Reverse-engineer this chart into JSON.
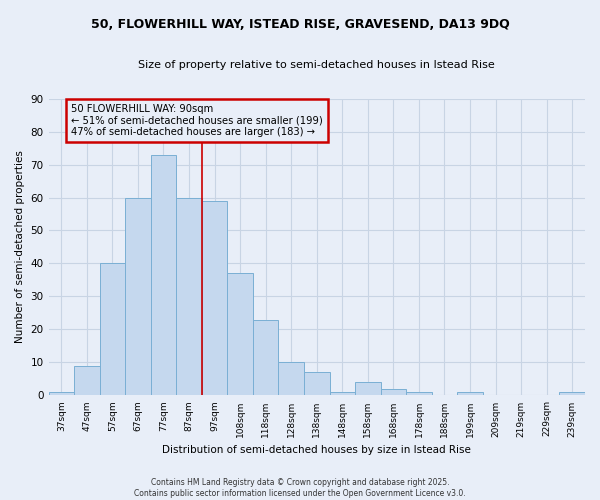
{
  "title1": "50, FLOWERHILL WAY, ISTEAD RISE, GRAVESEND, DA13 9DQ",
  "title2": "Size of property relative to semi-detached houses in Istead Rise",
  "xlabel": "Distribution of semi-detached houses by size in Istead Rise",
  "ylabel": "Number of semi-detached properties",
  "categories": [
    "37sqm",
    "47sqm",
    "57sqm",
    "67sqm",
    "77sqm",
    "87sqm",
    "97sqm",
    "108sqm",
    "118sqm",
    "128sqm",
    "138sqm",
    "148sqm",
    "158sqm",
    "168sqm",
    "178sqm",
    "188sqm",
    "199sqm",
    "209sqm",
    "219sqm",
    "229sqm",
    "239sqm"
  ],
  "values": [
    1,
    9,
    40,
    60,
    73,
    60,
    59,
    37,
    23,
    10,
    7,
    1,
    4,
    2,
    1,
    0,
    1,
    0,
    0,
    0,
    1
  ],
  "bar_color": "#c5d8ee",
  "bar_edge_color": "#7aafd4",
  "grid_color": "#c8d4e4",
  "background_color": "#e8eef8",
  "vline_x": 5.5,
  "vline_color": "#cc0000",
  "annotation_line1": "50 FLOWERHILL WAY: 90sqm",
  "annotation_line2": "← 51% of semi-detached houses are smaller (199)",
  "annotation_line3": "47% of semi-detached houses are larger (183) →",
  "annotation_box_color": "#cc0000",
  "ylim": [
    0,
    90
  ],
  "yticks": [
    0,
    10,
    20,
    30,
    40,
    50,
    60,
    70,
    80,
    90
  ],
  "footer1": "Contains HM Land Registry data © Crown copyright and database right 2025.",
  "footer2": "Contains public sector information licensed under the Open Government Licence v3.0."
}
